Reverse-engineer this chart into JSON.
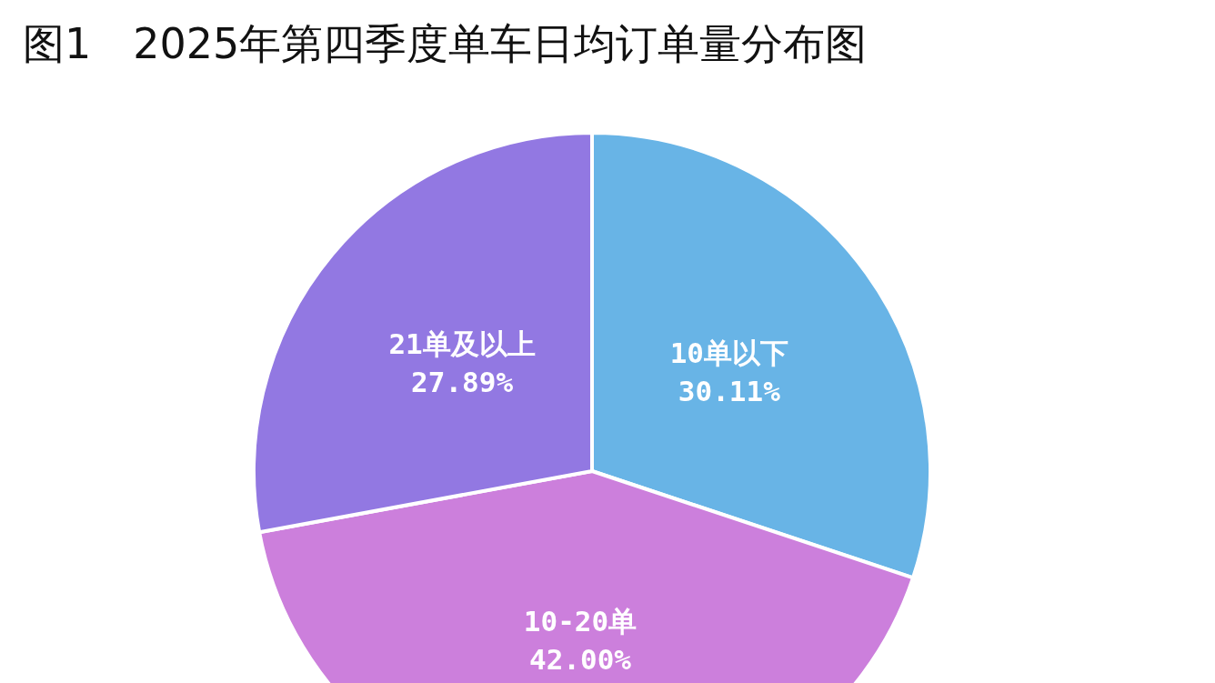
{
  "chart_data": {
    "type": "pie",
    "title": "图1　2025年第四季度单车日均订单量分布图",
    "categories": [
      "10单以下",
      "10-20单",
      "21单及以上"
    ],
    "values": [
      30.11,
      42.0,
      27.89
    ],
    "value_labels": [
      "30.11%",
      "42.00%",
      "27.89%"
    ],
    "colors": [
      "#68b4e6",
      "#cc7fdc",
      "#9278e2"
    ]
  }
}
